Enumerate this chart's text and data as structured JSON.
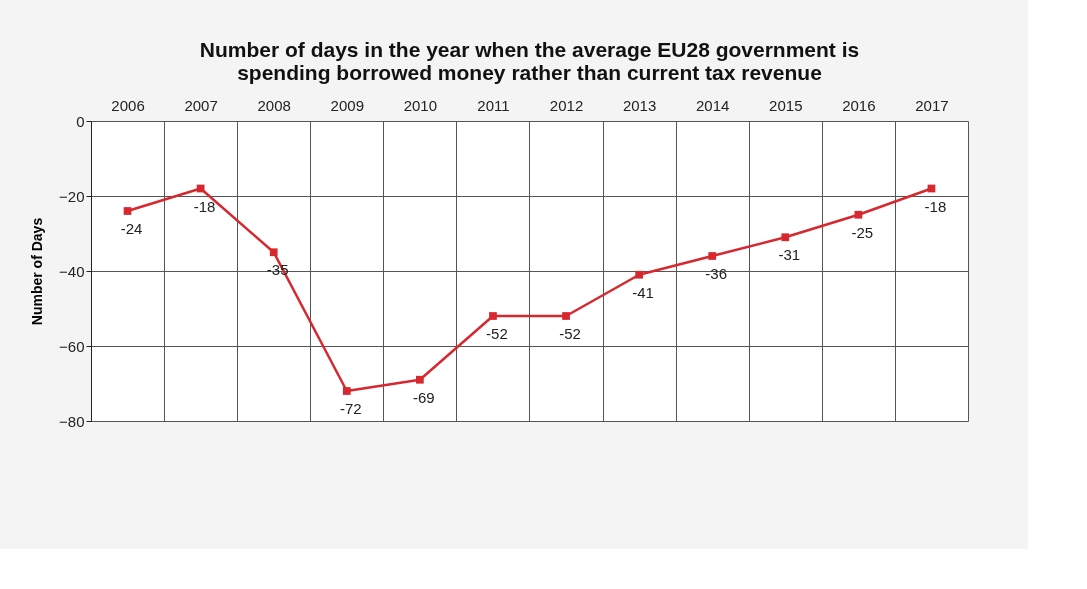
{
  "chart_data": {
    "type": "line",
    "title": [
      "Number of days in the year when the average EU28 government is",
      "spending borrowed money rather than current tax revenue"
    ],
    "ylabel": "Number of Days",
    "categories": [
      "2006",
      "2007",
      "2008",
      "2009",
      "2010",
      "2011",
      "2012",
      "2013",
      "2014",
      "2015",
      "2016",
      "2017"
    ],
    "series": [
      {
        "color": "#d7282f",
        "values": [
          -24,
          -18,
          -35,
          -72,
          -69,
          -52,
          -52,
          -41,
          -36,
          -31,
          -25,
          -18
        ]
      }
    ],
    "ylim": [
      -80,
      0
    ],
    "yticks": [
      0,
      -20,
      -40,
      -60,
      -80
    ],
    "grid": true,
    "marker": "square",
    "line_style": "solid",
    "data_labels": true,
    "legend": false
  }
}
